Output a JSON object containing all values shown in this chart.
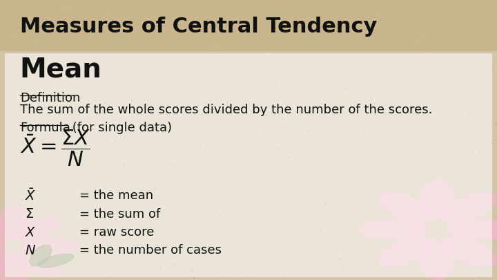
{
  "title": "Measures of Central Tendency",
  "title_fontsize": 22,
  "title_color": "#111111",
  "section_heading": "Mean",
  "section_heading_fontsize": 28,
  "def_label": "Definition",
  "def_text": "The sum of the whole scores divided by the number of the scores.",
  "formula_label": "Formula",
  "formula_suffix": " (for single data)",
  "syms_math": [
    "$\\bar{X}$",
    "$\\Sigma$",
    "$X$",
    "$N$"
  ],
  "legend_descs": [
    "= the mean",
    "= the sum of",
    "= raw score",
    "= the number of cases"
  ],
  "text_color": "#111111",
  "body_fontsize": 13,
  "formula_fontsize": 22,
  "bg_color": "#d4c5a9",
  "title_strip_color": "#c9b48a",
  "content_color": "#ffffff",
  "content_alpha": 0.55,
  "flower_left_color": "#f0b8c8",
  "flower_right_color": "#f4b8cc",
  "leaf_color": "#6a8a4a"
}
